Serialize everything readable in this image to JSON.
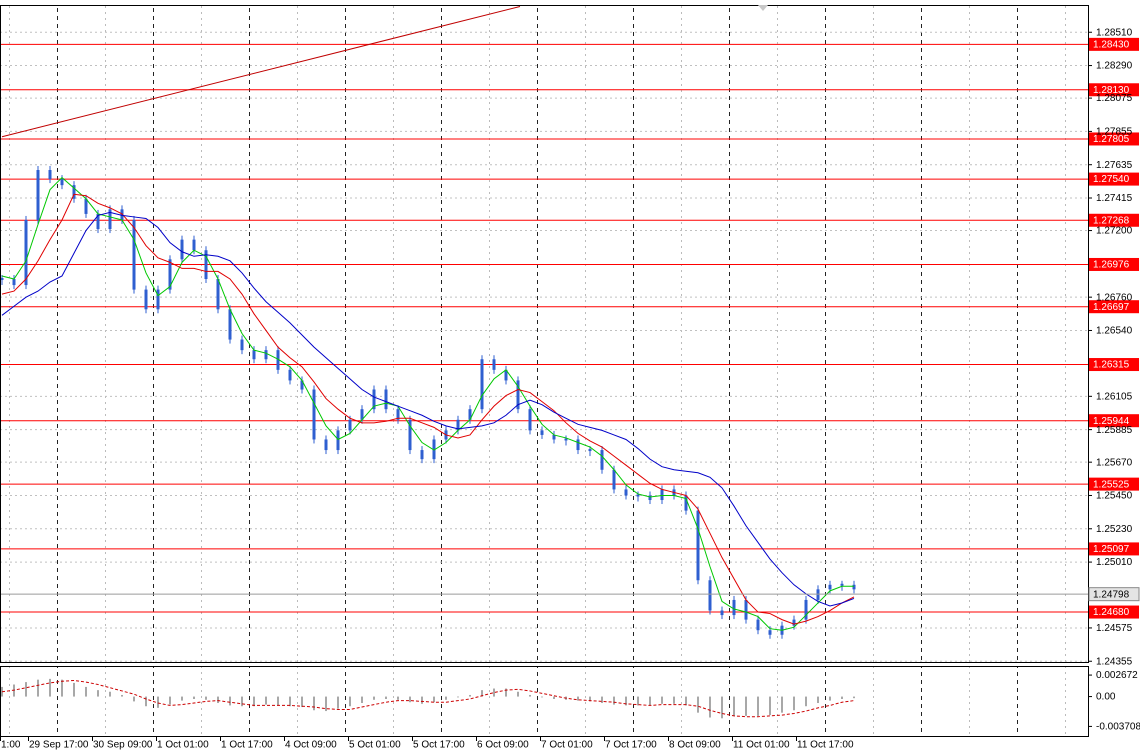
{
  "chart_data": [
    {
      "type": "candlestick",
      "xlim": [
        -0.1667,
        90.5
      ],
      "ylim": [
        1.2435,
        1.2869
      ],
      "color": "#2f5fd0",
      "grid": true,
      "values": [
        1.2688,
        1.2684,
        1.2727,
        1.276,
        1.2754,
        1.275,
        1.2741,
        1.2731,
        1.2721,
        1.2734,
        1.2727,
        1.2681,
        1.2668,
        1.2681,
        1.2701,
        1.2714,
        1.2707,
        1.2688,
        1.2668,
        1.2648,
        1.2641,
        1.2635,
        1.2641,
        1.2628,
        1.2621,
        1.2615,
        1.2582,
        1.2575,
        1.2588,
        1.2595,
        1.2602,
        1.2615,
        1.2602,
        1.2595,
        1.2575,
        1.2569,
        1.2582,
        1.2588,
        1.2595,
        1.2602,
        1.2635,
        1.2628,
        1.2621,
        1.2602,
        1.2588,
        1.2585,
        1.2582,
        1.2582,
        1.2575,
        1.2575,
        1.2562,
        1.2549,
        1.2545,
        1.2545,
        1.2542,
        1.2549,
        1.2545,
        1.2535,
        1.2489,
        1.2469,
        1.2466,
        1.2476,
        1.2463,
        1.2456,
        1.2453,
        1.2459,
        1.2463,
        1.2476,
        1.2483,
        1.2486,
        1.2486,
        1.2483
      ],
      "overlays": [
        {
          "color": "#00c800",
          "values": [
            1.269,
            1.2688,
            1.27,
            1.2724,
            1.2747,
            1.2755,
            1.2748,
            1.2741,
            1.2731,
            1.2729,
            1.2727,
            1.2714,
            1.2692,
            1.2677,
            1.2683,
            1.2699,
            1.2707,
            1.2703,
            1.2688,
            1.2668,
            1.2652,
            1.2641,
            1.2639,
            1.2635,
            1.263,
            1.2621,
            1.2606,
            1.2591,
            1.2582,
            1.2586,
            1.2595,
            1.2604,
            1.2606,
            1.2604,
            1.2591,
            1.258,
            1.2575,
            1.258,
            1.2588,
            1.2595,
            1.2611,
            1.2622,
            1.2628,
            1.2617,
            1.2604,
            1.2592,
            1.2585,
            1.2583,
            1.258,
            1.2577,
            1.2571,
            1.2562,
            1.2552,
            1.2546,
            1.2544,
            1.2545,
            1.2545,
            1.2543,
            1.2523,
            1.2498,
            1.2475,
            1.247,
            1.2468,
            1.2465,
            1.2457,
            1.2456,
            1.2458,
            1.2466,
            1.2474,
            1.2482,
            1.2485,
            1.2485
          ]
        },
        {
          "color": "#e00000",
          "values": [
            1.2678,
            1.268,
            1.2688,
            1.27,
            1.2714,
            1.2727,
            1.2744,
            1.2743,
            1.2738,
            1.2735,
            1.2731,
            1.2722,
            1.271,
            1.2702,
            1.2699,
            1.2695,
            1.2695,
            1.2693,
            1.2693,
            1.2688,
            1.2678,
            1.2665,
            1.2654,
            1.2643,
            1.2636,
            1.263,
            1.262,
            1.2609,
            1.2602,
            1.2596,
            1.2593,
            1.2593,
            1.2594,
            1.2596,
            1.2596,
            1.2593,
            1.259,
            1.2585,
            1.2583,
            1.2585,
            1.2595,
            1.2604,
            1.2611,
            1.2615,
            1.2613,
            1.2607,
            1.2601,
            1.2593,
            1.2586,
            1.2581,
            1.2577,
            1.2571,
            1.2565,
            1.2559,
            1.2553,
            1.2549,
            1.2547,
            1.2545,
            1.2536,
            1.252,
            1.2504,
            1.249,
            1.2476,
            1.2468,
            1.2467,
            1.2463,
            1.246,
            1.2462,
            1.2465,
            1.2469,
            1.2474,
            1.2478
          ]
        },
        {
          "color": "#0000c8",
          "values": [
            1.2664,
            1.267,
            1.2676,
            1.268,
            1.2686,
            1.269,
            1.2705,
            1.272,
            1.273,
            1.2732,
            1.273,
            1.2729,
            1.2728,
            1.2722,
            1.2712,
            1.2706,
            1.2703,
            1.2704,
            1.2703,
            1.27,
            1.2692,
            1.2682,
            1.2673,
            1.2666,
            1.2659,
            1.2651,
            1.2643,
            1.2636,
            1.2629,
            1.2622,
            1.2615,
            1.261,
            1.2607,
            1.2604,
            1.2601,
            1.2598,
            1.2594,
            1.2591,
            1.2589,
            1.259,
            1.2591,
            1.2593,
            1.2598,
            1.2605,
            1.2608,
            1.2605,
            1.26,
            1.2596,
            1.2592,
            1.259,
            1.2588,
            1.2585,
            1.2582,
            1.2576,
            1.2569,
            1.2564,
            1.2562,
            1.2561,
            1.256,
            1.2557,
            1.255,
            1.2538,
            1.2525,
            1.2514,
            1.2503,
            1.2494,
            1.2486,
            1.248,
            1.2475,
            1.2472,
            1.2474,
            1.2477
          ]
        }
      ],
      "xticks": [
        {
          "value": -0.1667,
          "label": "1:00"
        },
        {
          "value": 2.1667,
          "label": "29 Sep 17:00"
        },
        {
          "value": 7.5,
          "label": "30 Sep 09:00"
        },
        {
          "value": 12.8333,
          "label": "1 Oct 01:00"
        },
        {
          "value": 18.1667,
          "label": "1 Oct 17:00"
        },
        {
          "value": 23.5,
          "label": "4 Oct 09:00"
        },
        {
          "value": 28.8333,
          "label": "5 Oct 01:00"
        },
        {
          "value": 34.1667,
          "label": "5 Oct 17:00"
        },
        {
          "value": 39.5,
          "label": "6 Oct 09:00"
        },
        {
          "value": 44.8333,
          "label": "7 Oct 01:00"
        },
        {
          "value": 50.1667,
          "label": "7 Oct 17:00"
        },
        {
          "value": 55.5,
          "label": "8 Oct 09:00"
        },
        {
          "value": 60.8333,
          "label": "11 Oct 01:00"
        },
        {
          "value": 66.1667,
          "label": "11 Oct 17:00"
        }
      ],
      "yticks": [
        {
          "value": 1.2851,
          "label": "1.28510"
        },
        {
          "value": 1.2829,
          "label": "1.28290"
        },
        1.28075,
        1.27855,
        1.27635,
        1.27415,
        {
          "value": 1.272,
          "label": "1.27200"
        },
        {
          "value": 1.2676,
          "label": "1.26760"
        },
        {
          "value": 1.2654,
          "label": "1.26540"
        },
        1.26105,
        1.25885,
        {
          "value": 1.2567,
          "label": "1.25670"
        },
        {
          "value": 1.2545,
          "label": "1.25450"
        },
        {
          "value": 1.2523,
          "label": "1.25230"
        },
        {
          "value": 1.2501,
          "label": "1.25010"
        },
        1.24575,
        1.24355
      ],
      "levels": [
        {
          "value": 1.2843,
          "label": "1.28430"
        },
        {
          "value": 1.2813,
          "label": "1.28130"
        },
        1.27805,
        {
          "value": 1.2754,
          "label": "1.27540"
        },
        1.27268,
        1.26976,
        1.26697,
        1.26315,
        1.25944,
        1.25525,
        1.25097,
        {
          "value": 1.2468,
          "label": "1.24680"
        }
      ],
      "level_color": "#ff0000",
      "current_price": 1.24798,
      "trend_line": {
        "x": [
          0,
          43.1667
        ],
        "y": [
          1.2782,
          1.2868
        ],
        "color": "#c00000"
      }
    },
    {
      "type": "bar",
      "xlim": [
        -0.1667,
        90.5
      ],
      "ylim": [
        -0.0049,
        0.0038
      ],
      "color": "#a8a8a8",
      "grid": false,
      "values": [
        0.0012,
        0.0015,
        0.0018,
        0.0021,
        0.0022,
        0.0021,
        0.0017,
        0.0012,
        0.0008,
        0.0006,
        0.0002,
        -0.0006,
        -0.0012,
        -0.0014,
        -0.001,
        -0.0005,
        -0.0003,
        -0.0004,
        -0.0008,
        -0.0011,
        -0.0012,
        -0.0012,
        -0.001,
        -0.0011,
        -0.0012,
        -0.0013,
        -0.0017,
        -0.0018,
        -0.0015,
        -0.0012,
        -0.0008,
        -0.0004,
        -0.0003,
        -0.0004,
        -0.0007,
        -0.0009,
        -0.0007,
        -0.0004,
        -0.0001,
        0.0002,
        0.0008,
        0.001,
        0.001,
        0.0006,
        0.0002,
        -0.0001,
        -0.0003,
        -0.0004,
        -0.0005,
        -0.0006,
        -0.0008,
        -0.001,
        -0.0011,
        -0.0011,
        -0.0011,
        -0.0009,
        -0.0009,
        -0.0011,
        -0.002,
        -0.0026,
        -0.0027,
        -0.0024,
        -0.0024,
        -0.0024,
        -0.0023,
        -0.002,
        -0.0017,
        -0.0012,
        -0.0008,
        -0.0005,
        -0.0003,
        -0.0002
      ],
      "signal": {
        "color": "#cc0000",
        "values": [
          0.0006,
          0.0008,
          0.0011,
          0.0014,
          0.0017,
          0.0019,
          0.002,
          0.0018,
          0.0015,
          0.0011,
          0.0007,
          0.0003,
          -0.0003,
          -0.0008,
          -0.0011,
          -0.001,
          -0.0008,
          -0.0006,
          -0.0005,
          -0.0007,
          -0.0009,
          -0.0011,
          -0.0011,
          -0.0011,
          -0.0011,
          -0.0012,
          -0.0013,
          -0.0015,
          -0.0016,
          -0.0016,
          -0.0013,
          -0.001,
          -0.0007,
          -0.0005,
          -0.0005,
          -0.0006,
          -0.0007,
          -0.0007,
          -0.0005,
          -0.0003,
          0.0001,
          0.0005,
          0.0008,
          0.0009,
          0.0007,
          0.0004,
          0.0001,
          -0.0002,
          -0.0004,
          -0.0005,
          -0.0006,
          -0.0007,
          -0.0009,
          -0.001,
          -0.0011,
          -0.001,
          -0.001,
          -0.001,
          -0.0012,
          -0.0017,
          -0.0021,
          -0.0024,
          -0.0025,
          -0.0025,
          -0.0024,
          -0.0023,
          -0.0021,
          -0.0018,
          -0.0014,
          -0.0011,
          -0.0007,
          -0.0005
        ]
      },
      "yticks": [
        0.002672,
        {
          "value": 0,
          "label": "0.00"
        },
        -0.003708
      ]
    }
  ]
}
